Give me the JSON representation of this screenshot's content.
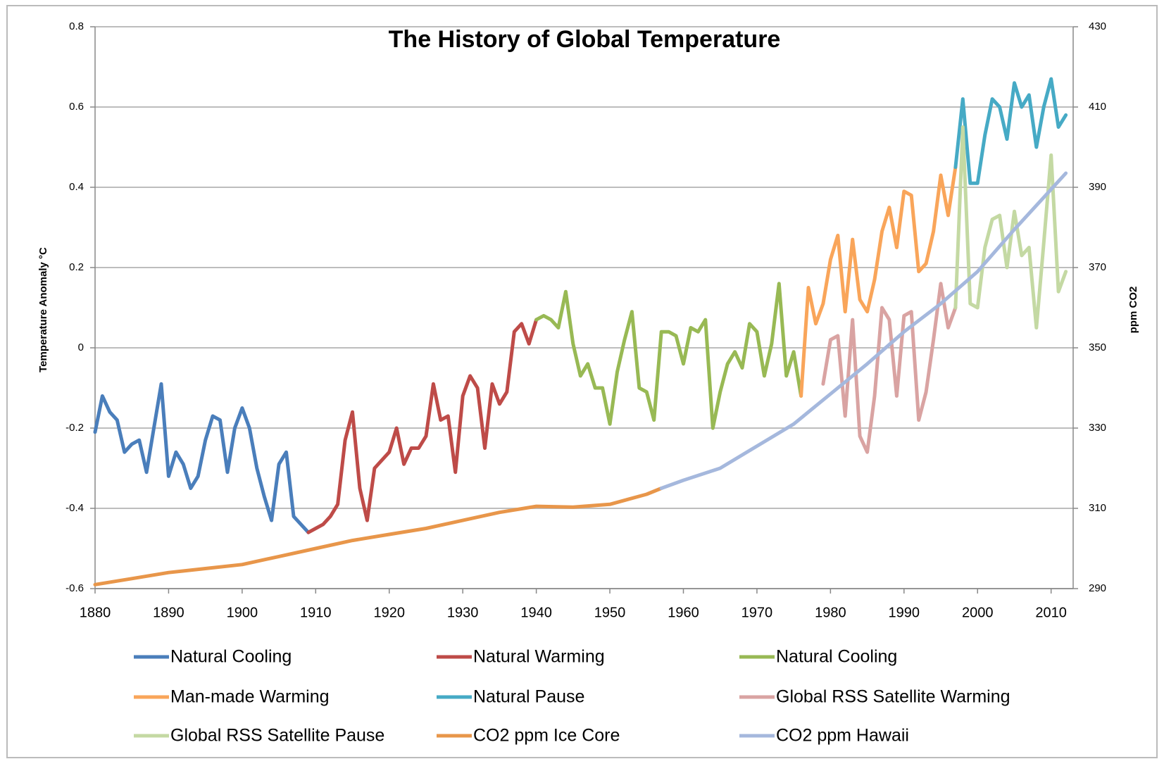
{
  "chart_data": {
    "type": "line",
    "title": "The History of Global Temperature",
    "y_label": "Temperature Anomaly °C",
    "y2_label": "ppm CO2",
    "xlim": [
      1880,
      2013
    ],
    "xticks": [
      1880,
      1890,
      1900,
      1910,
      1920,
      1930,
      1940,
      1950,
      1960,
      1970,
      1980,
      1990,
      2000,
      2010
    ],
    "ylim": [
      -0.6,
      0.8
    ],
    "yticks": [
      -0.6,
      -0.4,
      -0.2,
      0,
      0.2,
      0.4,
      0.6,
      0.8
    ],
    "y2lim": [
      290,
      430
    ],
    "y2ticks": [
      290,
      310,
      330,
      350,
      370,
      390,
      410,
      430
    ],
    "grid": true,
    "series": [
      {
        "name": "Natural Cooling",
        "color": "#4a7ebb",
        "x": [
          1880,
          1881,
          1882,
          1883,
          1884,
          1885,
          1886,
          1887,
          1888,
          1889,
          1890,
          1891,
          1892,
          1893,
          1894,
          1895,
          1896,
          1897,
          1898,
          1899,
          1900,
          1901,
          1902,
          1903,
          1904,
          1905,
          1906,
          1907,
          1908,
          1909
        ],
        "values": [
          -0.21,
          -0.12,
          -0.16,
          -0.18,
          -0.26,
          -0.24,
          -0.23,
          -0.31,
          -0.2,
          -0.09,
          -0.32,
          -0.26,
          -0.29,
          -0.35,
          -0.32,
          -0.23,
          -0.17,
          -0.18,
          -0.31,
          -0.2,
          -0.15,
          -0.2,
          -0.3,
          -0.37,
          -0.43,
          -0.29,
          -0.26,
          -0.42,
          -0.44,
          -0.46
        ]
      },
      {
        "name": "Natural Warming",
        "color": "#be4b48",
        "x": [
          1909,
          1910,
          1911,
          1912,
          1913,
          1914,
          1915,
          1916,
          1917,
          1918,
          1919,
          1920,
          1921,
          1922,
          1923,
          1924,
          1925,
          1926,
          1927,
          1928,
          1929,
          1930,
          1931,
          1932,
          1933,
          1934,
          1935,
          1936,
          1937,
          1938,
          1939,
          1940
        ],
        "values": [
          -0.46,
          -0.45,
          -0.44,
          -0.42,
          -0.39,
          -0.23,
          -0.16,
          -0.35,
          -0.43,
          -0.3,
          -0.28,
          -0.26,
          -0.2,
          -0.29,
          -0.25,
          -0.25,
          -0.22,
          -0.09,
          -0.18,
          -0.17,
          -0.31,
          -0.12,
          -0.07,
          -0.1,
          -0.25,
          -0.09,
          -0.14,
          -0.11,
          0.04,
          0.06,
          0.01,
          0.07
        ]
      },
      {
        "name": "Natural Cooling",
        "color": "#98b954",
        "x": [
          1940,
          1941,
          1942,
          1943,
          1944,
          1945,
          1946,
          1947,
          1948,
          1949,
          1950,
          1951,
          1952,
          1953,
          1954,
          1955,
          1956,
          1957,
          1958,
          1959,
          1960,
          1961,
          1962,
          1963,
          1964,
          1965,
          1966,
          1967,
          1968,
          1969,
          1970,
          1971,
          1972,
          1973,
          1974,
          1975,
          1976
        ],
        "values": [
          0.07,
          0.08,
          0.07,
          0.05,
          0.14,
          0.01,
          -0.07,
          -0.04,
          -0.1,
          -0.1,
          -0.19,
          -0.06,
          0.02,
          0.09,
          -0.1,
          -0.11,
          -0.18,
          0.04,
          0.04,
          0.03,
          -0.04,
          0.05,
          0.04,
          0.07,
          -0.2,
          -0.11,
          -0.04,
          -0.01,
          -0.05,
          0.06,
          0.04,
          -0.07,
          0.01,
          0.16,
          -0.07,
          -0.01,
          -0.12
        ]
      },
      {
        "name": "Man-made Warming",
        "color": "#f9a55a",
        "x": [
          1976,
          1977,
          1978,
          1979,
          1980,
          1981,
          1982,
          1983,
          1984,
          1985,
          1986,
          1987,
          1988,
          1989,
          1990,
          1991,
          1992,
          1993,
          1994,
          1995,
          1996,
          1997
        ],
        "values": [
          -0.12,
          0.15,
          0.06,
          0.11,
          0.22,
          0.28,
          0.09,
          0.27,
          0.12,
          0.09,
          0.17,
          0.29,
          0.35,
          0.25,
          0.39,
          0.38,
          0.19,
          0.21,
          0.29,
          0.43,
          0.33,
          0.45
        ]
      },
      {
        "name": "Natural Pause",
        "color": "#46aac5",
        "x": [
          1997,
          1998,
          1999,
          2000,
          2001,
          2002,
          2003,
          2004,
          2005,
          2006,
          2007,
          2008,
          2009,
          2010,
          2011,
          2012
        ],
        "values": [
          0.45,
          0.62,
          0.41,
          0.41,
          0.53,
          0.62,
          0.6,
          0.52,
          0.66,
          0.6,
          0.63,
          0.5,
          0.6,
          0.67,
          0.55,
          0.58
        ]
      },
      {
        "name": "Global RSS Satellite Warming",
        "color": "#d9a3a2",
        "x": [
          1979,
          1980,
          1981,
          1982,
          1983,
          1984,
          1985,
          1986,
          1987,
          1988,
          1989,
          1990,
          1991,
          1992,
          1993,
          1994,
          1995,
          1996,
          1997
        ],
        "values": [
          -0.09,
          0.02,
          0.03,
          -0.17,
          0.07,
          -0.22,
          -0.26,
          -0.12,
          0.1,
          0.07,
          -0.12,
          0.08,
          0.09,
          -0.18,
          -0.11,
          0.02,
          0.16,
          0.05,
          0.1
        ]
      },
      {
        "name": "Global RSS Satellite Pause",
        "color": "#c4d9a3",
        "x": [
          1997,
          1998,
          1999,
          2000,
          2001,
          2002,
          2003,
          2004,
          2005,
          2006,
          2007,
          2008,
          2009,
          2010,
          2011,
          2012
        ],
        "values": [
          0.1,
          0.55,
          0.11,
          0.1,
          0.25,
          0.32,
          0.33,
          0.2,
          0.34,
          0.23,
          0.25,
          0.05,
          0.26,
          0.48,
          0.14,
          0.19
        ]
      },
      {
        "name": "CO2 ppm Ice Core",
        "color": "#e8964a",
        "axis": "y2",
        "x": [
          1880,
          1885,
          1890,
          1895,
          1900,
          1905,
          1910,
          1915,
          1920,
          1925,
          1930,
          1935,
          1940,
          1945,
          1950,
          1955,
          1957
        ],
        "values": [
          291,
          292.5,
          294,
          295,
          296,
          298,
          300,
          302,
          303.5,
          305,
          307,
          309,
          310.5,
          310.3,
          311,
          313.5,
          315
        ]
      },
      {
        "name": "CO2 ppm Hawaii",
        "color": "#a5b8dd",
        "axis": "y2",
        "x": [
          1957,
          1960,
          1965,
          1970,
          1975,
          1980,
          1985,
          1990,
          1995,
          2000,
          2005,
          2010,
          2012
        ],
        "values": [
          315,
          317,
          320,
          325.5,
          331,
          338.5,
          346,
          354,
          361,
          369,
          379.5,
          389.5,
          393.5
        ]
      }
    ]
  }
}
